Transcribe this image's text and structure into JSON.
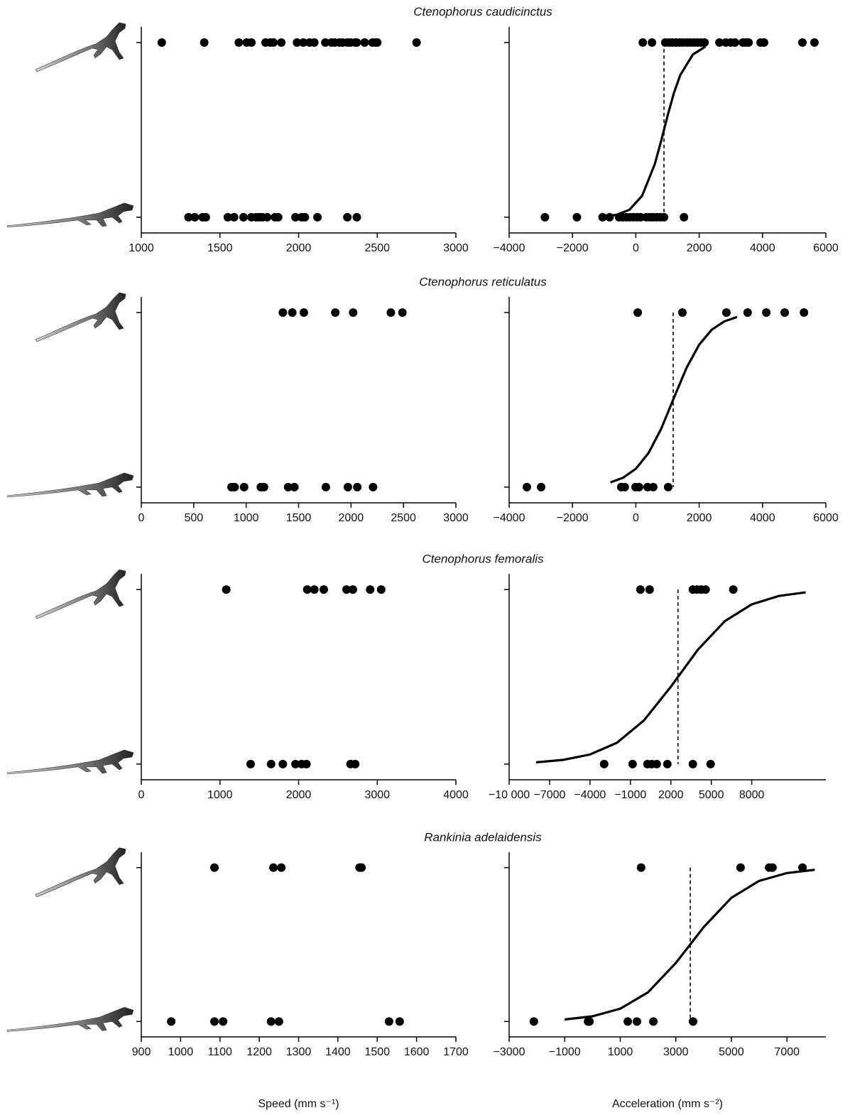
{
  "chart_data": [
    {
      "type": "scatter",
      "color": "#000000",
      "x": [
        1130,
        1400,
        1620,
        1670,
        1700,
        1790,
        1820,
        1840,
        1890,
        1990,
        2030,
        2070,
        2100,
        2170,
        2210,
        2230,
        2260,
        2280,
        2310,
        2330,
        2360,
        2370,
        2420,
        2470,
        2490,
        2500,
        2750,
        1300,
        1340,
        1390,
        1410,
        1550,
        1590,
        1650,
        1700,
        1730,
        1750,
        1770,
        1800,
        1850,
        1870,
        1980,
        2020,
        2040,
        2120,
        2310,
        2370
      ],
      "y": [
        1,
        1,
        1,
        1,
        1,
        1,
        1,
        1,
        1,
        1,
        1,
        1,
        1,
        1,
        1,
        1,
        1,
        1,
        1,
        1,
        1,
        1,
        1,
        1,
        1,
        1,
        1,
        0,
        0,
        0,
        0,
        0,
        0,
        0,
        0,
        0,
        0,
        0,
        0,
        0,
        0,
        0,
        0,
        0,
        0,
        0,
        0
      ],
      "xlim": [
        1000,
        3000
      ],
      "xticks": [
        1000,
        1500,
        2000,
        2500,
        3000
      ],
      "ylim": [
        -0.09,
        1.09
      ],
      "yticks": [
        0,
        1
      ]
    },
    {
      "type": "scatter",
      "color": "#000000",
      "title": "Ctenophorus caudicinctus",
      "x": [
        220,
        510,
        930,
        1050,
        1160,
        1270,
        1380,
        1490,
        1610,
        1720,
        1830,
        1940,
        2050,
        2170,
        2640,
        2840,
        3000,
        3130,
        3380,
        3470,
        3560,
        3940,
        4050,
        5260,
        5640,
        -2870,
        -1860,
        -1050,
        -830,
        -530,
        -410,
        -300,
        -190,
        -80,
        40,
        150,
        330,
        440,
        550,
        660,
        780,
        890,
        1520
      ],
      "y": [
        1,
        1,
        1,
        1,
        1,
        1,
        1,
        1,
        1,
        1,
        1,
        1,
        1,
        1,
        1,
        1,
        1,
        1,
        1,
        1,
        1,
        1,
        1,
        1,
        1,
        0,
        0,
        0,
        0,
        0,
        0,
        0,
        0,
        0,
        0,
        0,
        0,
        0,
        0,
        0,
        0,
        0,
        0
      ],
      "curve": {
        "x": [
          -1000,
          -600,
          -200,
          200,
          600,
          800,
          1000,
          1200,
          1400,
          1800,
          2200
        ],
        "y": [
          0.005,
          0.014,
          0.043,
          0.123,
          0.305,
          0.437,
          0.579,
          0.709,
          0.812,
          0.931,
          0.977
        ]
      },
      "threshold": 890,
      "xlim": [
        -4000,
        6000
      ],
      "xticks": [
        {
          "value": -4000,
          "label": "−4000"
        },
        {
          "value": -2000,
          "label": "−2000"
        },
        0,
        2000,
        4000,
        6000
      ],
      "ylim": [
        -0.09,
        1.09
      ],
      "yticks": [
        0,
        1
      ]
    },
    {
      "type": "scatter",
      "color": "#000000",
      "x": [
        1350,
        1440,
        1550,
        1850,
        2020,
        2380,
        2490,
        860,
        890,
        980,
        1140,
        1170,
        1400,
        1460,
        1760,
        1970,
        2060,
        2210
      ],
      "y": [
        1,
        1,
        1,
        1,
        1,
        1,
        1,
        0,
        0,
        0,
        0,
        0,
        0,
        0,
        0,
        0,
        0,
        0
      ],
      "xlim": [
        0,
        3000
      ],
      "xticks": [
        0,
        500,
        1000,
        1500,
        2000,
        2500,
        3000
      ],
      "ylim": [
        -0.09,
        1.09
      ],
      "yticks": [
        0,
        1
      ]
    },
    {
      "type": "scatter",
      "color": "#000000",
      "title": "Ctenophorus reticulatus",
      "x": [
        60,
        1470,
        2860,
        3530,
        4120,
        4700,
        5310,
        -3440,
        -2990,
        -460,
        -350,
        -10,
        100,
        370,
        550,
        1020
      ],
      "y": [
        1,
        1,
        1,
        1,
        1,
        1,
        1,
        0,
        0,
        0,
        0,
        0,
        0,
        0,
        0,
        0
      ],
      "curve": {
        "x": [
          -800,
          -400,
          0,
          400,
          800,
          1200,
          1600,
          2000,
          2400,
          2800,
          3200
        ],
        "y": [
          0.027,
          0.054,
          0.105,
          0.195,
          0.334,
          0.51,
          0.683,
          0.816,
          0.902,
          0.95,
          0.975
        ]
      },
      "threshold": 1180,
      "xlim": [
        -4000,
        6000
      ],
      "xticks": [
        {
          "value": -4000,
          "label": "−4000"
        },
        {
          "value": -2000,
          "label": "−2000"
        },
        0,
        2000,
        4000,
        6000
      ],
      "ylim": [
        -0.09,
        1.09
      ],
      "yticks": [
        0,
        1
      ]
    },
    {
      "type": "scatter",
      "color": "#000000",
      "x": [
        1080,
        2110,
        2200,
        2320,
        2610,
        2690,
        2910,
        3050,
        1390,
        1650,
        1800,
        1960,
        2040,
        2100,
        2660,
        2720
      ],
      "y": [
        1,
        1,
        1,
        1,
        1,
        1,
        1,
        1,
        0,
        0,
        0,
        0,
        0,
        0,
        0,
        0
      ],
      "xlim": [
        0,
        4000
      ],
      "xticks": [
        0,
        1000,
        2000,
        3000,
        4000
      ],
      "ylim": [
        -0.09,
        1.09
      ],
      "yticks": [
        0,
        1
      ]
    },
    {
      "type": "scatter",
      "color": "#000000",
      "title": "Ctenophorus femoralis",
      "x": [
        -260,
        420,
        3630,
        3950,
        4260,
        4580,
        6630,
        -2950,
        -840,
        260,
        580,
        950,
        1740,
        3630,
        4950
      ],
      "y": [
        1,
        1,
        1,
        1,
        1,
        1,
        1,
        0,
        0,
        0,
        0,
        0,
        0,
        0,
        0
      ],
      "curve": {
        "x": [
          -8000,
          -6000,
          -4000,
          -2000,
          0,
          2000,
          4000,
          6000,
          8000,
          10000,
          12000
        ],
        "y": [
          0.01,
          0.024,
          0.055,
          0.122,
          0.25,
          0.443,
          0.655,
          0.819,
          0.915,
          0.963,
          0.984
        ]
      },
      "threshold": 2530,
      "xlim": [
        -10000,
        13500
      ],
      "xticks": [
        {
          "value": -10000,
          "label": "−10 000"
        },
        {
          "value": -7000,
          "label": "−7000"
        },
        {
          "value": -4000,
          "label": "−4000"
        },
        {
          "value": -1000,
          "label": "−1000"
        },
        2000,
        5000,
        8000
      ],
      "ylim": [
        -0.09,
        1.09
      ],
      "yticks": [
        0,
        1
      ]
    },
    {
      "type": "scatter",
      "color": "#000000",
      "xlabel": "Speed (mm s⁻¹)",
      "x": [
        1086,
        1236,
        1256,
        1455,
        1460,
        976,
        1086,
        1108,
        1230,
        1250,
        1530,
        1557
      ],
      "y": [
        1,
        1,
        1,
        1,
        1,
        0,
        0,
        0,
        0,
        0,
        0,
        0
      ],
      "xlim": [
        900,
        1700
      ],
      "xticks": [
        900,
        1000,
        1100,
        1200,
        1300,
        1400,
        1500,
        1600,
        1700
      ],
      "ylim": [
        -0.1,
        1.1
      ],
      "yticks": [
        0,
        1
      ]
    },
    {
      "type": "scatter",
      "color": "#000000",
      "title": "Rankinia adelaidensis",
      "xlabel": "Acceleration (mm s⁻²)",
      "x": [
        1750,
        5330,
        6360,
        6480,
        7560,
        -2110,
        -160,
        -110,
        1270,
        1600,
        2190,
        3620
      ],
      "y": [
        1,
        1,
        1,
        1,
        1,
        0,
        0,
        0,
        0,
        0,
        0,
        0
      ],
      "curve": {
        "x": [
          -1000,
          0,
          1000,
          2000,
          3000,
          4000,
          5000,
          6000,
          7000,
          8000
        ],
        "y": [
          0.013,
          0.034,
          0.083,
          0.19,
          0.38,
          0.613,
          0.804,
          0.914,
          0.965,
          0.986
        ]
      },
      "threshold": 3520,
      "xlim": [
        -3000,
        8400
      ],
      "xticks": [
        {
          "value": -3000,
          "label": "−3000"
        },
        {
          "value": -1000,
          "label": "−1000"
        },
        1000,
        3000,
        5000,
        7000
      ],
      "ylim": [
        -0.1,
        1.1
      ],
      "yticks": [
        0,
        1
      ]
    }
  ]
}
